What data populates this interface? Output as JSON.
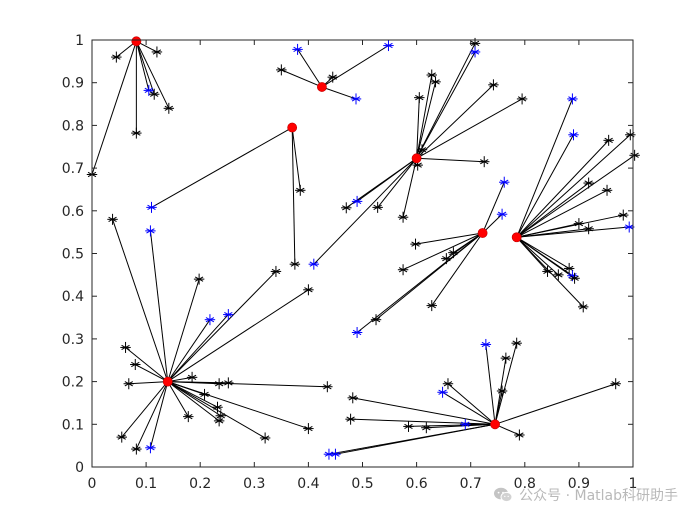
{
  "chart_data": {
    "type": "scatter",
    "title": "",
    "xlabel": "",
    "ylabel": "",
    "xlim": [
      0,
      1
    ],
    "ylim": [
      0,
      1
    ],
    "grid": false,
    "x_ticks": [
      "0",
      "0.1",
      "0.2",
      "0.3",
      "0.4",
      "0.5",
      "0.6",
      "0.7",
      "0.8",
      "0.9",
      "1"
    ],
    "y_ticks": [
      "0",
      "0.1",
      "0.2",
      "0.3",
      "0.4",
      "0.5",
      "0.6",
      "0.7",
      "0.8",
      "0.9",
      "1"
    ],
    "colors": {
      "center": "#ff0000",
      "node": "#000000",
      "node_alt": "#0000ff",
      "link": "#000000"
    },
    "centers": [
      {
        "x": 0.082,
        "y": 0.997
      },
      {
        "x": 0.425,
        "y": 0.89
      },
      {
        "x": 0.37,
        "y": 0.795
      },
      {
        "x": 0.6,
        "y": 0.723
      },
      {
        "x": 0.722,
        "y": 0.548
      },
      {
        "x": 0.785,
        "y": 0.538
      },
      {
        "x": 0.14,
        "y": 0.2
      },
      {
        "x": 0.745,
        "y": 0.1
      }
    ],
    "nodes": [
      {
        "x": 0.0,
        "y": 0.685,
        "c": 0,
        "color": "black"
      },
      {
        "x": 0.045,
        "y": 0.96,
        "c": 0,
        "color": "black"
      },
      {
        "x": 0.12,
        "y": 0.972,
        "c": 0,
        "color": "black"
      },
      {
        "x": 0.105,
        "y": 0.882,
        "c": 0,
        "color": "blue"
      },
      {
        "x": 0.115,
        "y": 0.873,
        "c": 0,
        "color": "black"
      },
      {
        "x": 0.142,
        "y": 0.84,
        "c": 0,
        "color": "black"
      },
      {
        "x": 0.082,
        "y": 0.782,
        "c": 0,
        "color": "black"
      },
      {
        "x": 0.38,
        "y": 0.978,
        "c": 1,
        "color": "blue"
      },
      {
        "x": 0.548,
        "y": 0.987,
        "c": 1,
        "color": "blue"
      },
      {
        "x": 0.35,
        "y": 0.93,
        "c": 1,
        "color": "black"
      },
      {
        "x": 0.445,
        "y": 0.913,
        "c": 1,
        "color": "black"
      },
      {
        "x": 0.488,
        "y": 0.862,
        "c": 1,
        "color": "blue"
      },
      {
        "x": 0.11,
        "y": 0.608,
        "c": 2,
        "color": "blue"
      },
      {
        "x": 0.385,
        "y": 0.648,
        "c": 2,
        "color": "black"
      },
      {
        "x": 0.375,
        "y": 0.475,
        "c": 2,
        "color": "black"
      },
      {
        "x": 0.708,
        "y": 0.992,
        "c": 3,
        "color": "black"
      },
      {
        "x": 0.708,
        "y": 0.972,
        "c": 3,
        "color": "blue"
      },
      {
        "x": 0.628,
        "y": 0.918,
        "c": 3,
        "color": "black"
      },
      {
        "x": 0.635,
        "y": 0.902,
        "c": 3,
        "color": "black"
      },
      {
        "x": 0.605,
        "y": 0.865,
        "c": 3,
        "color": "black"
      },
      {
        "x": 0.795,
        "y": 0.862,
        "c": 3,
        "color": "black"
      },
      {
        "x": 0.742,
        "y": 0.895,
        "c": 3,
        "color": "black"
      },
      {
        "x": 0.61,
        "y": 0.743,
        "c": 3,
        "color": "black"
      },
      {
        "x": 0.602,
        "y": 0.707,
        "c": 3,
        "color": "black"
      },
      {
        "x": 0.725,
        "y": 0.715,
        "c": 3,
        "color": "black"
      },
      {
        "x": 0.49,
        "y": 0.622,
        "c": 3,
        "color": "blue"
      },
      {
        "x": 0.528,
        "y": 0.608,
        "c": 3,
        "color": "black"
      },
      {
        "x": 0.47,
        "y": 0.607,
        "c": 3,
        "color": "black"
      },
      {
        "x": 0.575,
        "y": 0.585,
        "c": 3,
        "color": "black"
      },
      {
        "x": 0.41,
        "y": 0.475,
        "c": 3,
        "color": "blue"
      },
      {
        "x": 0.762,
        "y": 0.667,
        "c": 4,
        "color": "blue"
      },
      {
        "x": 0.758,
        "y": 0.592,
        "c": 4,
        "color": "blue"
      },
      {
        "x": 0.598,
        "y": 0.522,
        "c": 4,
        "color": "black"
      },
      {
        "x": 0.668,
        "y": 0.502,
        "c": 4,
        "color": "black"
      },
      {
        "x": 0.575,
        "y": 0.462,
        "c": 4,
        "color": "black"
      },
      {
        "x": 0.655,
        "y": 0.488,
        "c": 4,
        "color": "black"
      },
      {
        "x": 0.628,
        "y": 0.378,
        "c": 4,
        "color": "black"
      },
      {
        "x": 0.525,
        "y": 0.345,
        "c": 4,
        "color": "black"
      },
      {
        "x": 0.49,
        "y": 0.315,
        "c": 4,
        "color": "blue"
      },
      {
        "x": 0.888,
        "y": 0.862,
        "c": 5,
        "color": "blue"
      },
      {
        "x": 0.89,
        "y": 0.778,
        "c": 5,
        "color": "blue"
      },
      {
        "x": 0.955,
        "y": 0.765,
        "c": 5,
        "color": "black"
      },
      {
        "x": 0.995,
        "y": 0.778,
        "c": 5,
        "color": "black"
      },
      {
        "x": 1.003,
        "y": 0.73,
        "c": 5,
        "color": "black"
      },
      {
        "x": 0.918,
        "y": 0.665,
        "c": 5,
        "color": "black"
      },
      {
        "x": 0.952,
        "y": 0.648,
        "c": 5,
        "color": "black"
      },
      {
        "x": 0.982,
        "y": 0.59,
        "c": 5,
        "color": "black"
      },
      {
        "x": 0.993,
        "y": 0.562,
        "c": 5,
        "color": "blue"
      },
      {
        "x": 0.9,
        "y": 0.57,
        "c": 5,
        "color": "black"
      },
      {
        "x": 0.918,
        "y": 0.558,
        "c": 5,
        "color": "black"
      },
      {
        "x": 0.842,
        "y": 0.458,
        "c": 5,
        "color": "black"
      },
      {
        "x": 0.862,
        "y": 0.45,
        "c": 5,
        "color": "black"
      },
      {
        "x": 0.882,
        "y": 0.465,
        "c": 5,
        "color": "black"
      },
      {
        "x": 0.888,
        "y": 0.448,
        "c": 5,
        "color": "blue"
      },
      {
        "x": 0.892,
        "y": 0.442,
        "c": 5,
        "color": "black"
      },
      {
        "x": 0.908,
        "y": 0.375,
        "c": 5,
        "color": "black"
      },
      {
        "x": 0.038,
        "y": 0.58,
        "c": 6,
        "color": "black"
      },
      {
        "x": 0.108,
        "y": 0.553,
        "c": 6,
        "color": "blue"
      },
      {
        "x": 0.34,
        "y": 0.458,
        "c": 6,
        "color": "black"
      },
      {
        "x": 0.4,
        "y": 0.415,
        "c": 6,
        "color": "black"
      },
      {
        "x": 0.198,
        "y": 0.44,
        "c": 6,
        "color": "black"
      },
      {
        "x": 0.252,
        "y": 0.357,
        "c": 6,
        "color": "blue"
      },
      {
        "x": 0.218,
        "y": 0.345,
        "c": 6,
        "color": "blue"
      },
      {
        "x": 0.062,
        "y": 0.28,
        "c": 6,
        "color": "black"
      },
      {
        "x": 0.08,
        "y": 0.24,
        "c": 6,
        "color": "black"
      },
      {
        "x": 0.068,
        "y": 0.195,
        "c": 6,
        "color": "black"
      },
      {
        "x": 0.185,
        "y": 0.21,
        "c": 6,
        "color": "black"
      },
      {
        "x": 0.235,
        "y": 0.195,
        "c": 6,
        "color": "black"
      },
      {
        "x": 0.252,
        "y": 0.197,
        "c": 6,
        "color": "black"
      },
      {
        "x": 0.435,
        "y": 0.188,
        "c": 6,
        "color": "black"
      },
      {
        "x": 0.208,
        "y": 0.17,
        "c": 6,
        "color": "black"
      },
      {
        "x": 0.232,
        "y": 0.14,
        "c": 6,
        "color": "black"
      },
      {
        "x": 0.238,
        "y": 0.12,
        "c": 6,
        "color": "black"
      },
      {
        "x": 0.235,
        "y": 0.108,
        "c": 6,
        "color": "black"
      },
      {
        "x": 0.178,
        "y": 0.118,
        "c": 6,
        "color": "black"
      },
      {
        "x": 0.32,
        "y": 0.068,
        "c": 6,
        "color": "black"
      },
      {
        "x": 0.4,
        "y": 0.09,
        "c": 6,
        "color": "black"
      },
      {
        "x": 0.055,
        "y": 0.07,
        "c": 6,
        "color": "black"
      },
      {
        "x": 0.082,
        "y": 0.042,
        "c": 6,
        "color": "black"
      },
      {
        "x": 0.108,
        "y": 0.045,
        "c": 6,
        "color": "blue"
      },
      {
        "x": 0.785,
        "y": 0.29,
        "c": 7,
        "color": "black"
      },
      {
        "x": 0.765,
        "y": 0.255,
        "c": 7,
        "color": "black"
      },
      {
        "x": 0.728,
        "y": 0.287,
        "c": 7,
        "color": "blue"
      },
      {
        "x": 0.758,
        "y": 0.178,
        "c": 7,
        "color": "black"
      },
      {
        "x": 0.968,
        "y": 0.195,
        "c": 7,
        "color": "black"
      },
      {
        "x": 0.658,
        "y": 0.195,
        "c": 7,
        "color": "black"
      },
      {
        "x": 0.648,
        "y": 0.175,
        "c": 7,
        "color": "blue"
      },
      {
        "x": 0.482,
        "y": 0.162,
        "c": 7,
        "color": "black"
      },
      {
        "x": 0.478,
        "y": 0.112,
        "c": 7,
        "color": "black"
      },
      {
        "x": 0.585,
        "y": 0.095,
        "c": 7,
        "color": "black"
      },
      {
        "x": 0.618,
        "y": 0.092,
        "c": 7,
        "color": "black"
      },
      {
        "x": 0.69,
        "y": 0.1,
        "c": 7,
        "color": "blue"
      },
      {
        "x": 0.79,
        "y": 0.075,
        "c": 7,
        "color": "black"
      },
      {
        "x": 0.438,
        "y": 0.03,
        "c": 7,
        "color": "blue"
      },
      {
        "x": 0.45,
        "y": 0.03,
        "c": 7,
        "color": "blue"
      }
    ]
  },
  "watermark": {
    "text": "公众号 · Matlab科研助手",
    "icon": "wechat-icon"
  }
}
